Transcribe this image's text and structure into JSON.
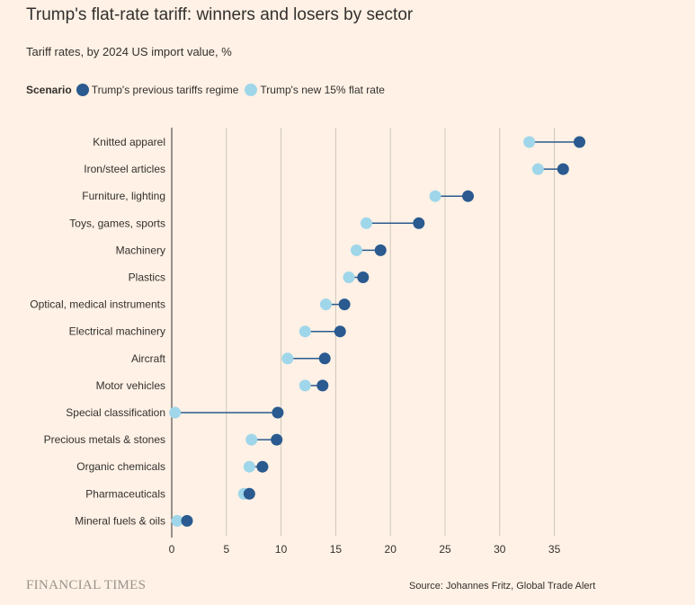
{
  "title": "Trump's flat-rate tariff: winners and losers by sector",
  "subtitle": "Tariff rates, by 2024 US import value, %",
  "legend": {
    "title": "Scenario",
    "items": [
      {
        "label": "Trump's previous tariffs regime",
        "color": "#2a5a8f"
      },
      {
        "label": "Trump's new 15% flat rate",
        "color": "#9fd6ea"
      }
    ]
  },
  "footer": {
    "brand": "FINANCIAL TIMES",
    "source": "Source: Johannes Fritz, Global Trade Alert"
  },
  "chart_data": {
    "type": "dumbbell",
    "xlim": [
      0,
      37.5
    ],
    "xticks": [
      0,
      5,
      10,
      15,
      20,
      25,
      30,
      35
    ],
    "grid": true,
    "colors": {
      "previous": "#2a5a8f",
      "flat": "#9fd6ea",
      "line": "#2a5a8f",
      "grid": "#cec6b9"
    },
    "series": [
      {
        "name": "Trump's previous tariffs regime",
        "key": "previous"
      },
      {
        "name": "Trump's new 15% flat rate",
        "key": "flat"
      }
    ],
    "categories": [
      "Knitted apparel",
      "Iron/steel articles",
      "Furniture, lighting",
      "Toys, games, sports",
      "Machinery",
      "Plastics",
      "Optical, medical instruments",
      "Electrical machinery",
      "Aircraft",
      "Motor vehicles",
      "Special classification",
      "Precious metals & stones",
      "Organic chemicals",
      "Pharmaceuticals",
      "Mineral fuels & oils"
    ],
    "previous": [
      37.3,
      35.8,
      27.1,
      22.6,
      19.1,
      17.5,
      15.8,
      15.4,
      14.0,
      13.8,
      9.7,
      9.6,
      8.3,
      7.1,
      1.4
    ],
    "flat": [
      32.7,
      33.5,
      24.1,
      17.8,
      16.9,
      16.2,
      14.1,
      12.2,
      10.6,
      12.2,
      0.3,
      7.3,
      7.1,
      6.6,
      0.5
    ]
  }
}
